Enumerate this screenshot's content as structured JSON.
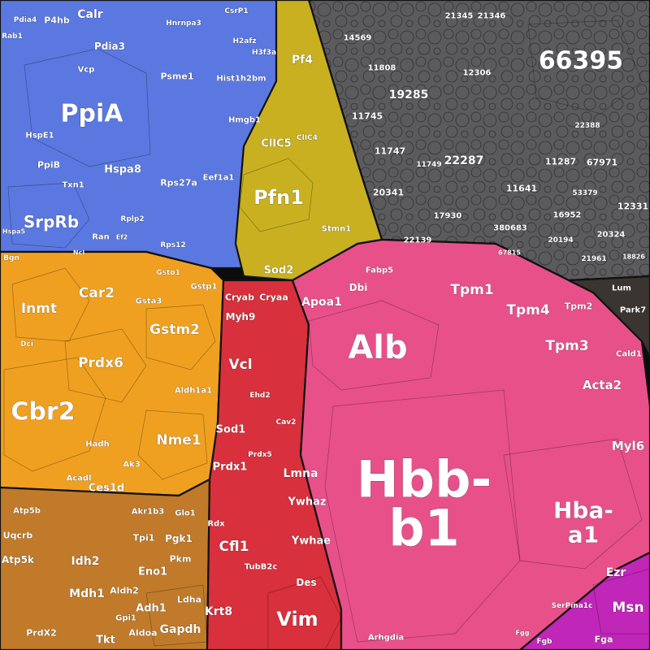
{
  "chart_data": {
    "type": "treemap",
    "colors": {
      "blue": "#5a78e0",
      "orange": "#f0a020",
      "brown": "#c07a2a",
      "olive": "#c8b020",
      "gray": "#5b5b5e",
      "red": "#d8303c",
      "pink": "#e8508a",
      "magenta": "#c026b8",
      "dark": "#3a3530"
    },
    "labels": [
      {
        "id": "p1",
        "text": "66395",
        "c": "gray"
      },
      {
        "id": "p2",
        "text": "21345",
        "c": "gray"
      },
      {
        "id": "p3",
        "text": "21346",
        "c": "gray"
      },
      {
        "id": "p4",
        "text": "14569",
        "c": "gray"
      },
      {
        "id": "p5",
        "text": "11808",
        "c": "gray"
      },
      {
        "id": "p6",
        "text": "12306",
        "c": "gray"
      },
      {
        "id": "p7",
        "text": "19285",
        "c": "gray"
      },
      {
        "id": "p8",
        "text": "11745",
        "c": "gray"
      },
      {
        "id": "p9",
        "text": "11747",
        "c": "gray"
      },
      {
        "id": "p10",
        "text": "22287",
        "c": "gray"
      },
      {
        "id": "p11",
        "text": "11287",
        "c": "gray"
      },
      {
        "id": "p12",
        "text": "67971",
        "c": "gray"
      },
      {
        "id": "p13",
        "text": "20341",
        "c": "gray"
      },
      {
        "id": "p14",
        "text": "11641",
        "c": "gray"
      },
      {
        "id": "p15",
        "text": "17930",
        "c": "gray"
      },
      {
        "id": "p16",
        "text": "380683",
        "c": "gray"
      },
      {
        "id": "p17",
        "text": "16952",
        "c": "gray"
      },
      {
        "id": "p18",
        "text": "12331",
        "c": "gray"
      },
      {
        "id": "p19",
        "text": "22139",
        "c": "gray"
      },
      {
        "id": "p20",
        "text": "20194",
        "c": "gray"
      },
      {
        "id": "p21",
        "text": "20324",
        "c": "gray"
      },
      {
        "id": "p22",
        "text": "21961",
        "c": "gray"
      },
      {
        "id": "p23",
        "text": "53379",
        "c": "gray"
      },
      {
        "id": "p24",
        "text": "11749",
        "c": "gray"
      },
      {
        "id": "p25",
        "text": "22388",
        "c": "gray"
      },
      {
        "id": "p26",
        "text": "67815",
        "c": "gray"
      },
      {
        "id": "p27",
        "text": "18826",
        "c": "gray"
      },
      {
        "id": "b1",
        "text": "PpiA",
        "c": "blue"
      },
      {
        "id": "b2",
        "text": "SrpRb",
        "c": "blue"
      },
      {
        "id": "b3",
        "text": "Calr",
        "c": "blue"
      },
      {
        "id": "b4",
        "text": "P4hb",
        "c": "blue"
      },
      {
        "id": "b5",
        "text": "Pdia3",
        "c": "blue"
      },
      {
        "id": "b6",
        "text": "Vcp",
        "c": "blue"
      },
      {
        "id": "b7",
        "text": "Hspa8",
        "c": "blue"
      },
      {
        "id": "b8",
        "text": "PpiB",
        "c": "blue"
      },
      {
        "id": "b9",
        "text": "Txn1",
        "c": "blue"
      },
      {
        "id": "b10",
        "text": "HspE1",
        "c": "blue"
      },
      {
        "id": "b11",
        "text": "Psme1",
        "c": "blue"
      },
      {
        "id": "b12",
        "text": "Rps27a",
        "c": "blue"
      },
      {
        "id": "b13",
        "text": "Eef1a1",
        "c": "blue"
      },
      {
        "id": "b14",
        "text": "Rplp2",
        "c": "blue"
      },
      {
        "id": "b15",
        "text": "Ran",
        "c": "blue"
      },
      {
        "id": "b16",
        "text": "Rps12",
        "c": "blue"
      },
      {
        "id": "b17",
        "text": "Hist1h2bm",
        "c": "blue"
      },
      {
        "id": "b18",
        "text": "Hmgb1",
        "c": "blue"
      },
      {
        "id": "b19",
        "text": "Hnrnpa3",
        "c": "blue"
      },
      {
        "id": "b20",
        "text": "CsrP1",
        "c": "blue"
      },
      {
        "id": "b21",
        "text": "H2afz",
        "c": "blue"
      },
      {
        "id": "b22",
        "text": "H3f3a",
        "c": "blue"
      },
      {
        "id": "b23",
        "text": "Pdia4",
        "c": "blue"
      },
      {
        "id": "b24",
        "text": "Rab1",
        "c": "blue"
      },
      {
        "id": "b25",
        "text": "Hspa5",
        "c": "blue"
      },
      {
        "id": "b26",
        "text": "Ncl",
        "c": "blue"
      },
      {
        "id": "b27",
        "text": "Ef2",
        "c": "blue"
      },
      {
        "id": "y1",
        "text": "Pfn1",
        "c": "olive"
      },
      {
        "id": "y2",
        "text": "Pf4",
        "c": "olive"
      },
      {
        "id": "y3",
        "text": "ClIC5",
        "c": "olive"
      },
      {
        "id": "y4",
        "text": "Sod2",
        "c": "olive"
      },
      {
        "id": "y5",
        "text": "Stmn1",
        "c": "olive"
      },
      {
        "id": "y6",
        "text": "ClIC4",
        "c": "olive"
      },
      {
        "id": "o1",
        "text": "Cbr2",
        "c": "orange"
      },
      {
        "id": "o2",
        "text": "Inmt",
        "c": "orange"
      },
      {
        "id": "o3",
        "text": "Car2",
        "c": "orange"
      },
      {
        "id": "o4",
        "text": "Prdx6",
        "c": "orange"
      },
      {
        "id": "o5",
        "text": "Gstm2",
        "c": "orange"
      },
      {
        "id": "o6",
        "text": "Nme1",
        "c": "orange"
      },
      {
        "id": "o7",
        "text": "Gsta3",
        "c": "orange"
      },
      {
        "id": "o8",
        "text": "Gstp1",
        "c": "orange"
      },
      {
        "id": "o9",
        "text": "Aldh1a1",
        "c": "orange"
      },
      {
        "id": "o10",
        "text": "Ces1d",
        "c": "orange"
      },
      {
        "id": "o11",
        "text": "Hadh",
        "c": "orange"
      },
      {
        "id": "o12",
        "text": "Ak3",
        "c": "orange"
      },
      {
        "id": "o13",
        "text": "Acadl",
        "c": "orange"
      },
      {
        "id": "o14",
        "text": "Bgn",
        "c": "orange"
      },
      {
        "id": "o15",
        "text": "Dci",
        "c": "orange"
      },
      {
        "id": "o16",
        "text": "Gsto1",
        "c": "orange"
      },
      {
        "id": "w1",
        "text": "Idh2",
        "c": "brown"
      },
      {
        "id": "w2",
        "text": "Mdh1",
        "c": "brown"
      },
      {
        "id": "w3",
        "text": "Eno1",
        "c": "brown"
      },
      {
        "id": "w4",
        "text": "Aldh2",
        "c": "brown"
      },
      {
        "id": "w5",
        "text": "Adh1",
        "c": "brown"
      },
      {
        "id": "w6",
        "text": "Ldha",
        "c": "brown"
      },
      {
        "id": "w7",
        "text": "Gapdh",
        "c": "brown"
      },
      {
        "id": "w8",
        "text": "Aldoa",
        "c": "brown"
      },
      {
        "id": "w9",
        "text": "Tkt",
        "c": "brown"
      },
      {
        "id": "w10",
        "text": "PrdX2",
        "c": "brown"
      },
      {
        "id": "w11",
        "text": "Atp5k",
        "c": "brown"
      },
      {
        "id": "w12",
        "text": "Uqcrb",
        "c": "brown"
      },
      {
        "id": "w13",
        "text": "Pgk1",
        "c": "brown"
      },
      {
        "id": "w14",
        "text": "Tpi1",
        "c": "brown"
      },
      {
        "id": "w15",
        "text": "Pkm",
        "c": "brown"
      },
      {
        "id": "w16",
        "text": "Glo1",
        "c": "brown"
      },
      {
        "id": "w17",
        "text": "Akr1b3",
        "c": "brown"
      },
      {
        "id": "w18",
        "text": "Gpi1",
        "c": "brown"
      },
      {
        "id": "w19",
        "text": "Atp5b",
        "c": "brown"
      },
      {
        "id": "r1",
        "text": "Vim",
        "c": "red"
      },
      {
        "id": "r2",
        "text": "Krt8",
        "c": "red"
      },
      {
        "id": "r3",
        "text": "Cfl1",
        "c": "red"
      },
      {
        "id": "r4",
        "text": "Ywhae",
        "c": "red"
      },
      {
        "id": "r5",
        "text": "Ywhaz",
        "c": "red"
      },
      {
        "id": "r6",
        "text": "Lmna",
        "c": "red"
      },
      {
        "id": "r7",
        "text": "Sod1",
        "c": "red"
      },
      {
        "id": "r8",
        "text": "Prdx1",
        "c": "red"
      },
      {
        "id": "r9",
        "text": "Vcl",
        "c": "red"
      },
      {
        "id": "r10",
        "text": "Myh9",
        "c": "red"
      },
      {
        "id": "r11",
        "text": "Cryab",
        "c": "red"
      },
      {
        "id": "r12",
        "text": "Cryaa",
        "c": "red"
      },
      {
        "id": "r13",
        "text": "Des",
        "c": "red"
      },
      {
        "id": "r14",
        "text": "TubB2c",
        "c": "red"
      },
      {
        "id": "r15",
        "text": "Rdx",
        "c": "red"
      },
      {
        "id": "r16",
        "text": "Cav2",
        "c": "red"
      },
      {
        "id": "r17",
        "text": "Ehd2",
        "c": "red"
      },
      {
        "id": "r18",
        "text": "Prdx5",
        "c": "red"
      },
      {
        "id": "k1",
        "text": "Hbb-",
        "c": "pink"
      },
      {
        "id": "k2",
        "text": "b1",
        "c": "pink"
      },
      {
        "id": "k3",
        "text": "Alb",
        "c": "pink"
      },
      {
        "id": "k4",
        "text": "Hba-",
        "c": "pink"
      },
      {
        "id": "k5",
        "text": "a1",
        "c": "pink"
      },
      {
        "id": "k6",
        "text": "Tpm1",
        "c": "pink"
      },
      {
        "id": "k7",
        "text": "Tpm4",
        "c": "pink"
      },
      {
        "id": "k8",
        "text": "Tpm3",
        "c": "pink"
      },
      {
        "id": "k9",
        "text": "Tpm2",
        "c": "pink"
      },
      {
        "id": "k10",
        "text": "Acta2",
        "c": "pink"
      },
      {
        "id": "k11",
        "text": "Myl6",
        "c": "pink"
      },
      {
        "id": "k12",
        "text": "Apoa1",
        "c": "pink"
      },
      {
        "id": "k13",
        "text": "Dbi",
        "c": "pink"
      },
      {
        "id": "k14",
        "text": "Fabp5",
        "c": "pink"
      },
      {
        "id": "k15",
        "text": "Cald1",
        "c": "pink"
      },
      {
        "id": "m1",
        "text": "Msn",
        "c": "magenta"
      },
      {
        "id": "m2",
        "text": "Ezr",
        "c": "magenta"
      },
      {
        "id": "m3",
        "text": "Fga",
        "c": "magenta"
      },
      {
        "id": "m4",
        "text": "Fgb",
        "c": "magenta"
      },
      {
        "id": "m5",
        "text": "SerPina1c",
        "c": "magenta"
      },
      {
        "id": "m6",
        "text": "Arhgdia",
        "c": "magenta"
      },
      {
        "id": "m7",
        "text": "Fgg",
        "c": "magenta"
      },
      {
        "id": "d1",
        "text": "Park7",
        "c": "dark"
      },
      {
        "id": "d2",
        "text": "Lum",
        "c": "dark"
      }
    ]
  }
}
